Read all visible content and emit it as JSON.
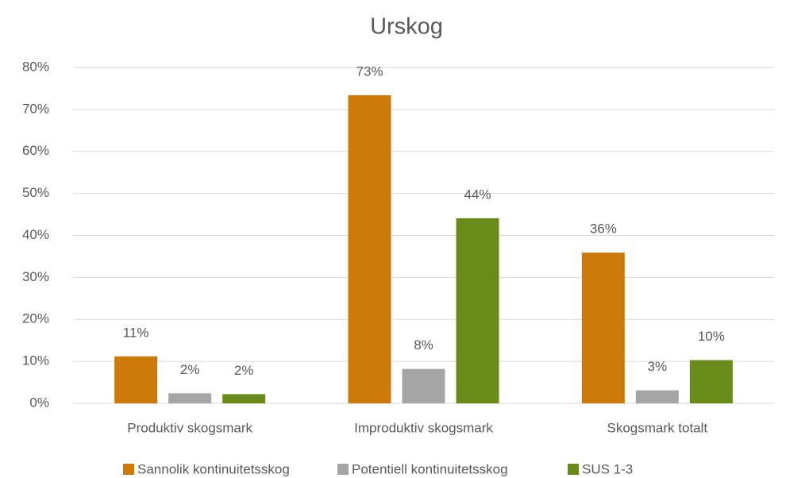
{
  "chart_data": {
    "type": "bar",
    "title": "Urskog",
    "categories": [
      "Produktiv skogsmark",
      "Improduktiv skogsmark",
      "Skogsmark totalt"
    ],
    "series": [
      {
        "name": "Sannolik kontinuitetsskog",
        "color": "#cc7a0a",
        "values": [
          11.2,
          73.4,
          35.9
        ],
        "value_labels": [
          "11%",
          "73%",
          "36%"
        ]
      },
      {
        "name": "Potentiell kontinuitetsskog",
        "color": "#a5a5a5",
        "values": [
          2.4,
          8.2,
          3.1
        ],
        "value_labels": [
          "2%",
          "8%",
          "3%"
        ]
      },
      {
        "name": "SUS 1-3",
        "color": "#688b19",
        "values": [
          2.2,
          44.1,
          10.3
        ],
        "value_labels": [
          "2%",
          "44%",
          "10%"
        ]
      }
    ],
    "ylim": [
      0,
      80
    ],
    "yticks": [
      {
        "value": 0,
        "label": "0%"
      },
      {
        "value": 10,
        "label": "10%"
      },
      {
        "value": 20,
        "label": "20%"
      },
      {
        "value": 30,
        "label": "30%"
      },
      {
        "value": 40,
        "label": "40%"
      },
      {
        "value": 50,
        "label": "50%"
      },
      {
        "value": 60,
        "label": "60%"
      },
      {
        "value": 70,
        "label": "70%"
      },
      {
        "value": 80,
        "label": "80%"
      }
    ],
    "grid": true,
    "legend": "bottom"
  }
}
